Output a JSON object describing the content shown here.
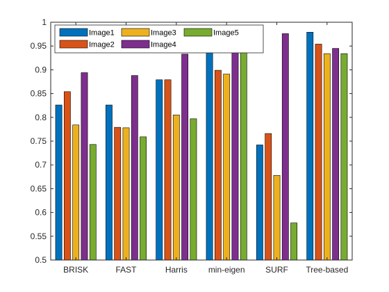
{
  "chart_data": {
    "type": "bar",
    "categories": [
      "BRISK",
      "FAST",
      "Harris",
      "min-eigen",
      "SURF",
      "Tree-based"
    ],
    "series": [
      {
        "name": "Image1",
        "color": "#0072BD",
        "values": [
          0.826,
          0.826,
          0.879,
          0.941,
          0.742,
          0.979
        ]
      },
      {
        "name": "Image2",
        "color": "#D95319",
        "values": [
          0.854,
          0.779,
          0.879,
          0.899,
          0.766,
          0.954
        ]
      },
      {
        "name": "Image3",
        "color": "#EDB120",
        "values": [
          0.784,
          0.778,
          0.805,
          0.891,
          0.678,
          0.934
        ]
      },
      {
        "name": "Image4",
        "color": "#7E2F8E",
        "values": [
          0.894,
          0.888,
          0.933,
          0.954,
          0.976,
          0.945
        ]
      },
      {
        "name": "Image5",
        "color": "#77AC30",
        "values": [
          0.743,
          0.759,
          0.797,
          0.937,
          0.578,
          0.934
        ]
      }
    ],
    "ylim": [
      0.5,
      1
    ],
    "yticks": [
      "0.5",
      "0.55",
      "0.6",
      "0.65",
      "0.7",
      "0.75",
      "0.8",
      "0.85",
      "0.9",
      "0.95",
      "1"
    ],
    "title": "",
    "xlabel": "",
    "ylabel": "",
    "legend_position": "top-left",
    "grid": false
  }
}
